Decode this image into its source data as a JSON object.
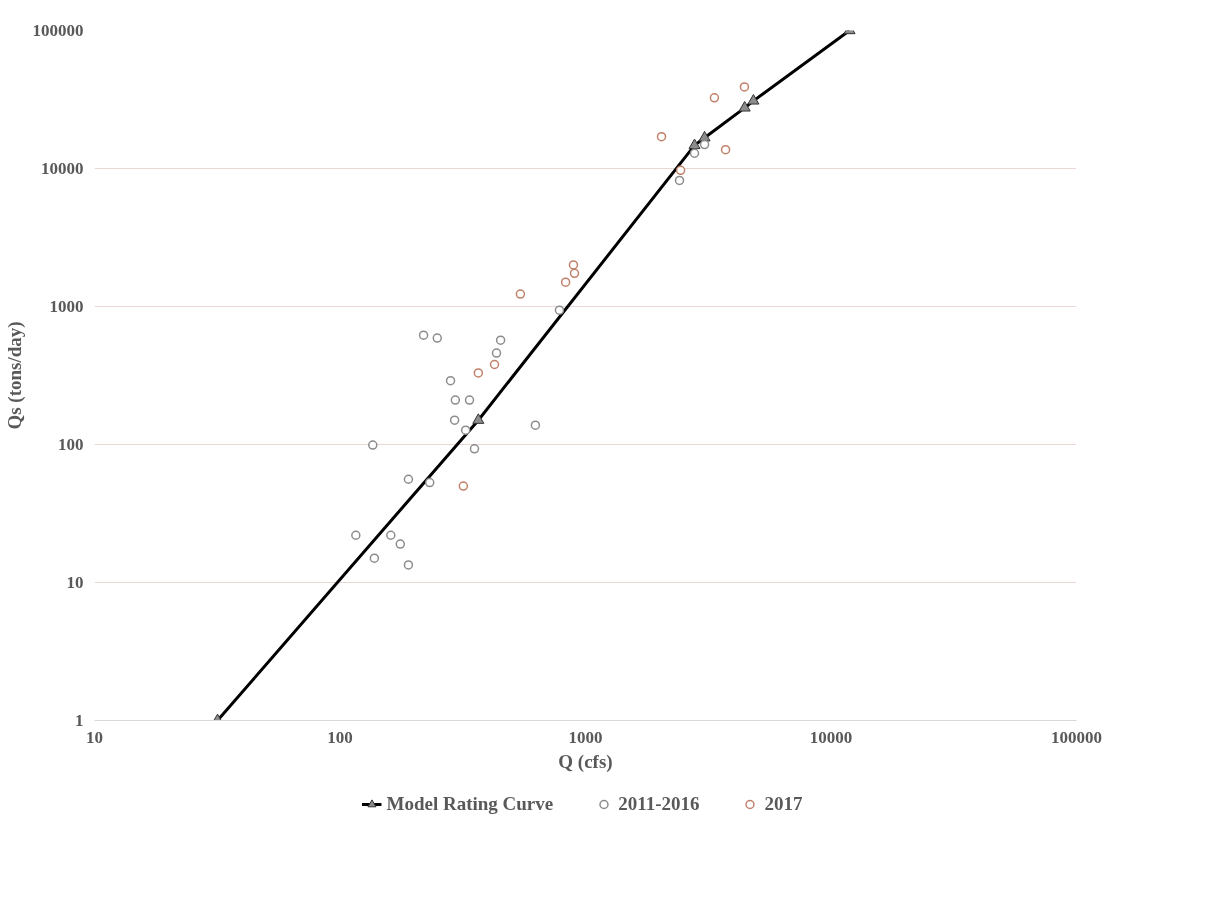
{
  "chart_data": {
    "type": "scatter",
    "xlabel": "Q (cfs)",
    "ylabel": "Qs (tons/day)",
    "log": "xy",
    "xlim": [
      10,
      100000
    ],
    "ylim": [
      1,
      100000
    ],
    "xticks": [
      10,
      100,
      1000,
      10000,
      100000
    ],
    "yticks": [
      1,
      10,
      100,
      1000,
      10000,
      100000
    ],
    "grid": "y",
    "legend": "bottom",
    "series": [
      {
        "name": "Model Rating Curve",
        "type": "line",
        "color": "#000000",
        "marker": "triangle",
        "line_style": "solid",
        "x": [
          31.7,
          366,
          2780,
          3055,
          4450,
          4830,
          11900
        ],
        "values": [
          1,
          150,
          14700,
          16700,
          27500,
          30900,
          100000
        ]
      },
      {
        "name": "2011-2016",
        "color": "#8c8c8c",
        "marker": "circle",
        "x": [
          783,
          219,
          249,
          451,
          434,
          282,
          295,
          337,
          293,
          325,
          625,
          136,
          353,
          190,
          232,
          116,
          161,
          176,
          138,
          190,
          2415,
          2780,
          3055
        ],
        "values": [
          940,
          620,
          590,
          570,
          460,
          290,
          210,
          210,
          150,
          127,
          138,
          99,
          93,
          56,
          53,
          22,
          22,
          19,
          15,
          13.4,
          8200,
          12900,
          14900
        ]
      },
      {
        "name": "2017",
        "color": "#c0806a",
        "marker": "circle",
        "x": [
          893,
          902,
          830,
          543,
          426,
          366,
          318,
          2040,
          3350,
          4440,
          3720,
          2440
        ],
        "values": [
          2000,
          1740,
          1500,
          1230,
          380,
          330,
          50,
          17000,
          32500,
          39000,
          13700,
          9700
        ]
      }
    ]
  }
}
